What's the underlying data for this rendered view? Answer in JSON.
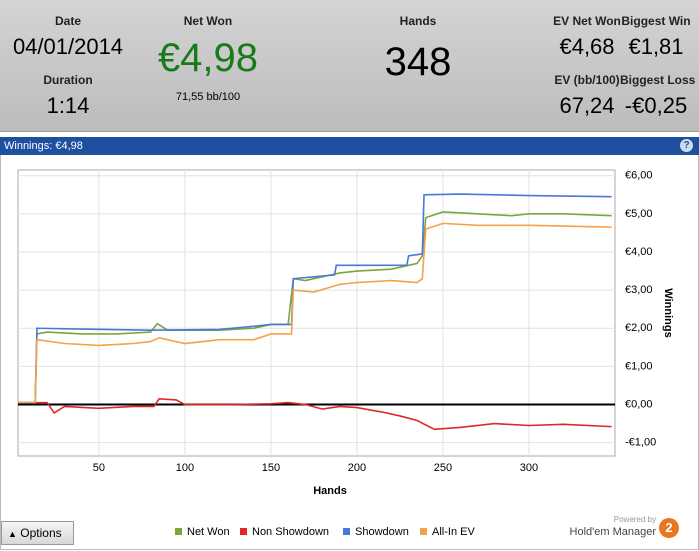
{
  "header": {
    "date_label": "Date",
    "date": "04/01/2014",
    "duration_label": "Duration",
    "duration": "1:14",
    "net_won_label": "Net Won",
    "net_won": "€4,98",
    "bb100": "71,55 bb/100",
    "hands_label": "Hands",
    "hands": "348",
    "ev_net_won_label": "EV Net Won",
    "ev_net_won": "€4,68",
    "biggest_win_label": "Biggest Win",
    "biggest_win": "€1,81",
    "ev_bb_label": "EV (bb/100)",
    "ev_bb": "67,24",
    "biggest_loss_label": "Biggest Loss",
    "biggest_loss": "-€0,25"
  },
  "help": "?",
  "options": "Options",
  "powered_by": "Powered by",
  "brand": "Hold'em Manager",
  "brand_version": "2",
  "chart_data": {
    "type": "line",
    "title": "Winnings: €4,98",
    "x_label": "Hands",
    "y_label": "Winnings",
    "xlim": [
      3,
      350
    ],
    "xticks": [
      50,
      100,
      150,
      200,
      250,
      300
    ],
    "ylim": [
      -1.35,
      6.15
    ],
    "yticks": [
      {
        "value": 6,
        "label": "€6,00"
      },
      {
        "value": 5,
        "label": "€5,00"
      },
      {
        "value": 4,
        "label": "€4,00"
      },
      {
        "value": 3,
        "label": "€3,00"
      },
      {
        "value": 2,
        "label": "€2,00"
      },
      {
        "value": 1,
        "label": "€1,00"
      },
      {
        "value": 0,
        "label": "€0,00"
      },
      {
        "value": -1,
        "label": "-€1,00"
      }
    ],
    "grid": true,
    "series": [
      {
        "name": "Net Won",
        "color": "#78a83c",
        "x": [
          3,
          13,
          14,
          20,
          40,
          60,
          80,
          84,
          90,
          100,
          120,
          140,
          150,
          160,
          163,
          170,
          190,
          200,
          220,
          235,
          238,
          240,
          250,
          270,
          290,
          300,
          320,
          348
        ],
        "values": [
          0.05,
          0.05,
          1.85,
          1.9,
          1.85,
          1.85,
          1.9,
          2.12,
          1.95,
          1.95,
          1.95,
          2.0,
          2.1,
          2.1,
          3.3,
          3.25,
          3.45,
          3.5,
          3.55,
          3.7,
          3.9,
          4.9,
          5.05,
          5.0,
          4.95,
          5.0,
          5.0,
          4.95
        ]
      },
      {
        "name": "Non Showdown",
        "color": "#e02828",
        "x": [
          3,
          20,
          24,
          30,
          50,
          70,
          82,
          85,
          95,
          100,
          130,
          150,
          160,
          170,
          180,
          190,
          200,
          215,
          225,
          235,
          245,
          260,
          280,
          300,
          320,
          348
        ],
        "values": [
          0.05,
          0.05,
          -0.22,
          -0.05,
          -0.1,
          -0.05,
          -0.05,
          0.15,
          0.12,
          0,
          0,
          0.02,
          0.05,
          0.0,
          -0.12,
          -0.05,
          -0.08,
          -0.2,
          -0.3,
          -0.42,
          -0.65,
          -0.6,
          -0.5,
          -0.55,
          -0.52,
          -0.58
        ]
      },
      {
        "name": "Showdown",
        "color": "#4a78d8",
        "x": [
          3,
          13,
          14,
          40,
          80,
          100,
          120,
          140,
          150,
          162,
          163,
          187,
          188,
          229,
          230,
          238,
          239,
          260,
          300,
          348
        ],
        "values": [
          0.05,
          0.05,
          2.0,
          1.98,
          1.95,
          1.96,
          1.97,
          2.05,
          2.1,
          2.1,
          3.3,
          3.4,
          3.65,
          3.65,
          3.9,
          3.95,
          5.5,
          5.52,
          5.48,
          5.45
        ]
      },
      {
        "name": "All-In EV",
        "color": "#f4a24a",
        "x": [
          3,
          13,
          14,
          30,
          50,
          70,
          80,
          85,
          100,
          120,
          140,
          150,
          162,
          163,
          175,
          190,
          200,
          220,
          235,
          238,
          240,
          250,
          270,
          300,
          320,
          348
        ],
        "values": [
          0.05,
          0.05,
          1.7,
          1.6,
          1.55,
          1.6,
          1.65,
          1.75,
          1.6,
          1.7,
          1.7,
          1.85,
          1.85,
          3.0,
          2.95,
          3.15,
          3.2,
          3.25,
          3.2,
          3.3,
          4.6,
          4.75,
          4.7,
          4.7,
          4.68,
          4.65
        ]
      }
    ]
  }
}
